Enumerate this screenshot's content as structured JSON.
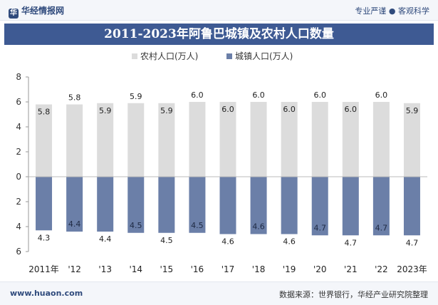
{
  "header": {
    "brand": "华经情报网",
    "slogan": "专业严谨 ● 客观科学"
  },
  "title": "2011-2023年阿鲁巴城镇及农村人口数量",
  "footer": {
    "site": "www.huaon.com",
    "source": "数据来源：世界银行，华经产业研究院整理"
  },
  "colors": {
    "rural": "#dcdcdc",
    "urban": "#6b7fa8",
    "title_bg": "#3e5a93"
  },
  "chart_data": {
    "type": "bar",
    "categories": [
      "2011年",
      "'12",
      "'13",
      "'14",
      "'15",
      "'16",
      "'17",
      "'18",
      "'19",
      "'20",
      "'21",
      "'22",
      "2023年"
    ],
    "series": [
      {
        "name": "农村人口(万人)",
        "values": [
          5.8,
          5.8,
          5.9,
          5.9,
          5.9,
          6.0,
          6.0,
          6.0,
          6.0,
          6.0,
          6.0,
          6.0,
          5.9
        ]
      },
      {
        "name": "城镇人口(万人)",
        "values": [
          4.3,
          4.4,
          4.4,
          4.5,
          4.5,
          4.5,
          4.6,
          4.6,
          4.6,
          4.7,
          4.7,
          4.7,
          4.7
        ]
      }
    ],
    "rural_label_positions": [
      "inside",
      "above",
      "inside",
      "above",
      "inside",
      "above",
      "inside",
      "above",
      "inside",
      "above",
      "inside",
      "above",
      "inside"
    ],
    "urban_label_positions": [
      "below",
      "inside",
      "below",
      "inside",
      "below",
      "inside",
      "below",
      "inside",
      "below",
      "inside",
      "below",
      "inside",
      "below"
    ],
    "y_tick_labels": [
      "8",
      "6",
      "4",
      "2",
      "0",
      "2",
      "4",
      "6"
    ],
    "y_tick_values": [
      8,
      6,
      4,
      2,
      0,
      -2,
      -4,
      -6
    ],
    "ylim": [
      -6,
      8
    ],
    "legend_position": "top-center",
    "grid": false
  }
}
